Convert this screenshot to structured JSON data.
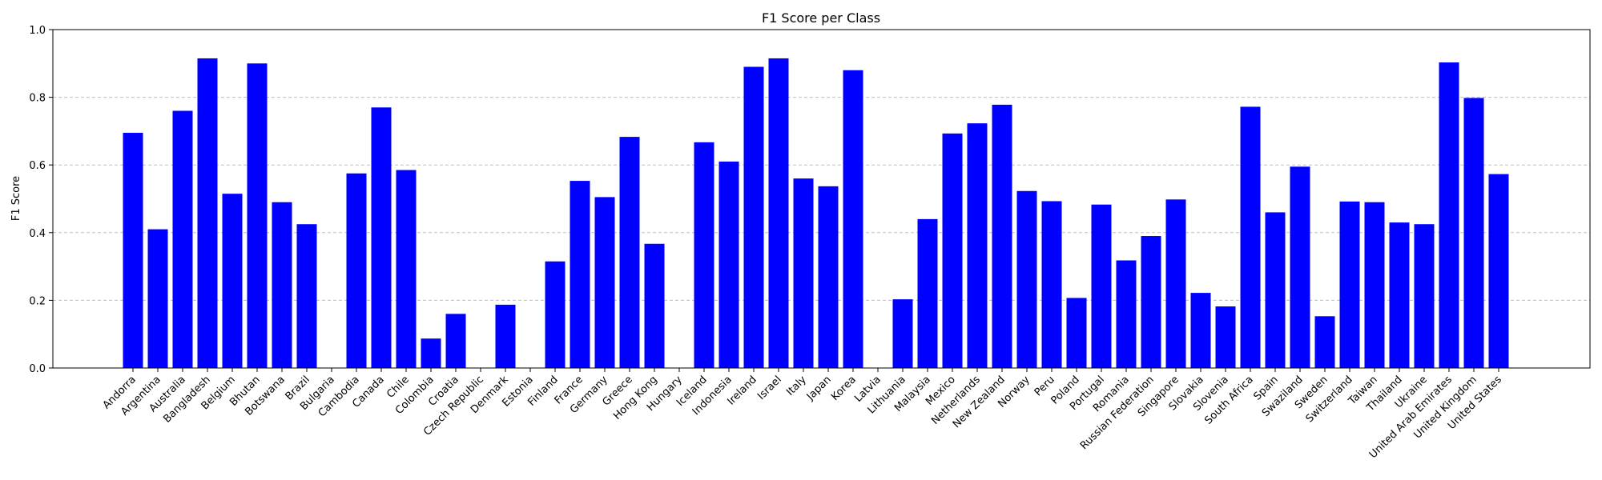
{
  "chart_data": {
    "type": "bar",
    "title": "F1 Score per Class",
    "xlabel": "",
    "ylabel": "F1 Score",
    "ylim": [
      0,
      1.0
    ],
    "yticks": [
      "0.0",
      "0.2",
      "0.4",
      "0.6",
      "0.8",
      "1.0"
    ],
    "grid": "y-dashed",
    "bar_color": "#0000ff",
    "categories": [
      "Andorra",
      "Argentina",
      "Australia",
      "Bangladesh",
      "Belgium",
      "Bhutan",
      "Botswana",
      "Brazil",
      "Bulgaria",
      "Cambodia",
      "Canada",
      "Chile",
      "Colombia",
      "Croatia",
      "Czech Republic",
      "Denmark",
      "Estonia",
      "Finland",
      "France",
      "Germany",
      "Greece",
      "Hong Kong",
      "Hungary",
      "Iceland",
      "Indonesia",
      "Ireland",
      "Israel",
      "Italy",
      "Japan",
      "Korea",
      "Latvia",
      "Lithuania",
      "Malaysia",
      "Mexico",
      "Netherlands",
      "New Zealand",
      "Norway",
      "Peru",
      "Poland",
      "Portugal",
      "Romania",
      "Russian Federation",
      "Singapore",
      "Slovakia",
      "Slovenia",
      "South Africa",
      "Spain",
      "Swaziland",
      "Sweden",
      "Switzerland",
      "Taiwan",
      "Thailand",
      "Ukraine",
      "United Arab Emirates",
      "United Kingdom",
      "United States"
    ],
    "values": [
      0.695,
      0.41,
      0.76,
      0.915,
      0.515,
      0.9,
      0.49,
      0.425,
      0.0,
      0.575,
      0.77,
      0.585,
      0.087,
      0.16,
      0.0,
      0.187,
      0.0,
      0.315,
      0.553,
      0.505,
      0.683,
      0.367,
      0.0,
      0.667,
      0.61,
      0.89,
      0.915,
      0.56,
      0.537,
      0.88,
      0.0,
      0.203,
      0.44,
      0.693,
      0.723,
      0.778,
      0.523,
      0.493,
      0.207,
      0.483,
      0.318,
      0.39,
      0.498,
      0.222,
      0.182,
      0.772,
      0.46,
      0.595,
      0.153,
      0.492,
      0.49,
      0.43,
      0.425,
      0.903,
      0.798,
      0.573
    ]
  }
}
